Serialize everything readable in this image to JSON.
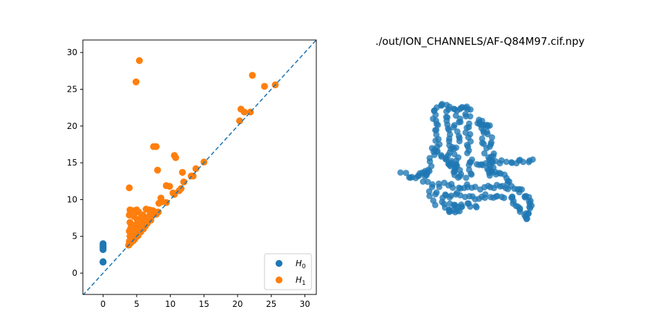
{
  "chart_data": [
    {
      "type": "scatter",
      "title": "",
      "xlabel": "",
      "ylabel": "",
      "xlim": [
        -3,
        31.7
      ],
      "ylim": [
        -2.9,
        31.7
      ],
      "xticks": [
        0,
        5,
        10,
        15,
        20,
        25,
        30
      ],
      "yticks": [
        0,
        5,
        10,
        15,
        20,
        25,
        30
      ],
      "grid": false,
      "diagonal_line": {
        "style": "dashed",
        "color": "#1f77b4"
      },
      "legend": {
        "placement": "lower-right"
      },
      "series": [
        {
          "name": "H0",
          "color": "#1f77b4",
          "points": [
            [
              0,
              1.5
            ],
            [
              0,
              1.55
            ],
            [
              0,
              3.2
            ],
            [
              0,
              3.4
            ],
            [
              0,
              3.55
            ],
            [
              0,
              3.7
            ],
            [
              0,
              3.85
            ],
            [
              0,
              4.0
            ]
          ]
        },
        {
          "name": "H1",
          "color": "#ff7f0e",
          "points": [
            [
              5.4,
              28.9
            ],
            [
              4.9,
              26.0
            ],
            [
              22.2,
              26.9
            ],
            [
              24.0,
              25.4
            ],
            [
              25.6,
              25.6
            ],
            [
              20.5,
              22.3
            ],
            [
              21.0,
              21.9
            ],
            [
              21.9,
              21.9
            ],
            [
              20.3,
              20.7
            ],
            [
              7.5,
              17.2
            ],
            [
              7.9,
              17.2
            ],
            [
              10.6,
              16.0
            ],
            [
              10.8,
              15.7
            ],
            [
              15.0,
              15.1
            ],
            [
              13.8,
              14.2
            ],
            [
              8.1,
              14.0
            ],
            [
              11.8,
              13.7
            ],
            [
              13.1,
              13.2
            ],
            [
              13.4,
              13.2
            ],
            [
              12.0,
              12.4
            ],
            [
              3.9,
              11.6
            ],
            [
              9.4,
              11.9
            ],
            [
              9.9,
              11.8
            ],
            [
              11.6,
              11.5
            ],
            [
              11.3,
              11.2
            ],
            [
              10.6,
              10.7
            ],
            [
              10.4,
              10.9
            ],
            [
              8.6,
              10.2
            ],
            [
              9.4,
              9.6
            ],
            [
              8.8,
              9.7
            ],
            [
              8.3,
              9.5
            ],
            [
              4.0,
              8.6
            ],
            [
              4.4,
              8.5
            ],
            [
              4.1,
              8.2
            ],
            [
              3.9,
              7.9
            ],
            [
              4.3,
              8.0
            ],
            [
              4.6,
              7.7
            ],
            [
              4.8,
              8.4
            ],
            [
              5.0,
              8.6
            ],
            [
              5.3,
              8.3
            ],
            [
              6.4,
              8.7
            ],
            [
              6.9,
              8.6
            ],
            [
              7.4,
              8.5
            ],
            [
              7.8,
              8.3
            ],
            [
              7.0,
              8.1
            ],
            [
              5.9,
              7.9
            ],
            [
              6.2,
              7.6
            ],
            [
              5.6,
              7.5
            ],
            [
              6.6,
              7.3
            ],
            [
              7.2,
              7.7
            ],
            [
              7.9,
              8.0
            ],
            [
              8.2,
              8.3
            ],
            [
              5.1,
              7.2
            ],
            [
              5.4,
              7.0
            ],
            [
              5.8,
              7.1
            ],
            [
              6.1,
              6.9
            ],
            [
              6.6,
              6.8
            ],
            [
              7.1,
              7.2
            ],
            [
              4.0,
              6.9
            ],
            [
              4.2,
              6.6
            ],
            [
              4.5,
              6.5
            ],
            [
              4.9,
              6.4
            ],
            [
              5.3,
              6.6
            ],
            [
              5.7,
              6.3
            ],
            [
              6.3,
              6.4
            ],
            [
              4.1,
              6.1
            ],
            [
              4.4,
              5.9
            ],
            [
              4.8,
              6.0
            ],
            [
              5.1,
              5.8
            ],
            [
              5.5,
              5.9
            ],
            [
              6.0,
              6.0
            ],
            [
              3.9,
              5.7
            ],
            [
              4.1,
              5.4
            ],
            [
              4.3,
              5.2
            ],
            [
              4.7,
              5.4
            ],
            [
              5.0,
              5.3
            ],
            [
              5.4,
              5.5
            ],
            [
              5.6,
              5.6
            ],
            [
              4.0,
              5.0
            ],
            [
              4.2,
              4.9
            ],
            [
              4.5,
              4.8
            ],
            [
              4.9,
              4.9
            ],
            [
              5.2,
              5.1
            ],
            [
              4.1,
              4.6
            ],
            [
              4.4,
              4.5
            ],
            [
              4.7,
              4.6
            ],
            [
              3.9,
              4.3
            ],
            [
              4.2,
              4.2
            ],
            [
              4.5,
              4.4
            ],
            [
              3.8,
              3.8
            ],
            [
              4.0,
              4.0
            ],
            [
              4.3,
              4.3
            ]
          ]
        }
      ]
    },
    {
      "type": "scatter",
      "title": "./out/ION_CHANNELS/AF-Q84M97.cif.npy",
      "xlabel": "",
      "ylabel": "",
      "axes_visible": false,
      "series": [
        {
          "name": "",
          "color": "#1f77b4",
          "point_groups": [
            {
              "path": [
                [
                  632,
                  158
                ],
                [
                  628,
                  170
                ],
                [
                  632,
                  182
                ],
                [
                  630,
                  194
                ],
                [
                  634,
                  206
                ],
                [
                  630,
                  218
                ],
                [
                  624,
                  232
                ],
                [
                  620,
                  246
                ],
                [
                  616,
                  258
                ]
              ],
              "count": 24
            },
            {
              "path": [
                [
                  648,
                  158
                ],
                [
                  646,
                  172
                ],
                [
                  650,
                  186
                ],
                [
                  648,
                  200
                ],
                [
                  652,
                  214
                ],
                [
                  650,
                  226
                ],
                [
                  654,
                  240
                ],
                [
                  656,
                  252
                ]
              ],
              "count": 22
            },
            {
              "path": [
                [
                  662,
                  160
                ],
                [
                  664,
                  174
                ],
                [
                  660,
                  188
                ],
                [
                  664,
                  202
                ],
                [
                  660,
                  216
                ],
                [
                  664,
                  230
                ],
                [
                  660,
                  244
                ],
                [
                  662,
                  256
                ]
              ],
              "count": 22
            },
            {
              "path": [
                [
                  676,
                  158
                ],
                [
                  678,
                  172
                ],
                [
                  674,
                  186
                ],
                [
                  680,
                  200
                ],
                [
                  676,
                  214
                ],
                [
                  680,
                  228
                ],
                [
                  678,
                  242
                ],
                [
                  682,
                  254
                ]
              ],
              "count": 22
            },
            {
              "path": [
                [
                  694,
                  176
                ],
                [
                  698,
                  190
                ],
                [
                  700,
                  204
                ],
                [
                  704,
                  218
                ],
                [
                  706,
                  232
                ],
                [
                  710,
                  246
                ],
                [
                  712,
                  258
                ]
              ],
              "count": 18
            },
            {
              "path": [
                [
                  706,
                  180
                ],
                [
                  708,
                  196
                ],
                [
                  712,
                  212
                ],
                [
                  714,
                  228
                ],
                [
                  716,
                  242
                ]
              ],
              "count": 14
            },
            {
              "path": [
                [
                  632,
                  156
                ],
                [
                  642,
                  154
                ],
                [
                  652,
                  156
                ],
                [
                  662,
                  156
                ],
                [
                  672,
                  156
                ],
                [
                  680,
                  158
                ]
              ],
              "count": 14
            },
            {
              "path": [
                [
                  690,
                  176
                ],
                [
                  698,
                  178
                ],
                [
                  706,
                  180
                ]
              ],
              "count": 8
            },
            {
              "path": [
                [
                  582,
                  252
                ],
                [
                  592,
                  256
                ],
                [
                  600,
                  258
                ],
                [
                  608,
                  254
                ],
                [
                  614,
                  250
                ],
                [
                  620,
                  248
                ]
              ],
              "count": 14
            },
            {
              "path": [
                [
                  616,
                  266
                ],
                [
                  630,
                  270
                ],
                [
                  646,
                  268
                ],
                [
                  662,
                  272
                ],
                [
                  678,
                  270
                ],
                [
                  694,
                  274
                ],
                [
                  710,
                  272
                ],
                [
                  724,
                  270
                ],
                [
                  738,
                  272
                ]
              ],
              "count": 28
            },
            {
              "path": [
                [
                  620,
                  280
                ],
                [
                  636,
                  284
                ],
                [
                  652,
                  286
                ],
                [
                  668,
                  282
                ],
                [
                  684,
                  286
                ],
                [
                  700,
                  284
                ],
                [
                  716,
                  288
                ],
                [
                  732,
                  286
                ]
              ],
              "count": 26
            },
            {
              "path": [
                [
                  630,
                  294
                ],
                [
                  644,
                  298
                ],
                [
                  660,
                  300
                ],
                [
                  676,
                  296
                ],
                [
                  690,
                  298
                ]
              ],
              "count": 16
            },
            {
              "path": [
                [
                  648,
                  302
                ],
                [
                  650,
                  308
                ],
                [
                  660,
                  306
                ],
                [
                  670,
                  300
                ]
              ],
              "count": 10
            },
            {
              "path": [
                [
                  690,
                  236
                ],
                [
                  700,
                  238
                ],
                [
                  714,
                  236
                ],
                [
                  730,
                  234
                ],
                [
                  746,
                  236
                ],
                [
                  758,
                  234
                ],
                [
                  772,
                  234
                ]
              ],
              "count": 20
            },
            {
              "path": [
                [
                  708,
                  248
                ],
                [
                  720,
                  250
                ],
                [
                  732,
                  256
                ],
                [
                  736,
                  266
                ]
              ],
              "count": 12
            },
            {
              "path": [
                [
                  744,
                  272
                ],
                [
                  752,
                  278
                ],
                [
                  760,
                  284
                ],
                [
                  766,
                  290
                ],
                [
                  768,
                  298
                ],
                [
                  764,
                  306
                ],
                [
                  760,
                  314
                ],
                [
                  760,
                  318
                ]
              ],
              "count": 22
            },
            {
              "path": [
                [
                  740,
                  282
                ],
                [
                  744,
                  292
                ],
                [
                  750,
                  300
                ],
                [
                  756,
                  308
                ]
              ],
              "count": 10
            },
            {
              "path": [
                [
                  626,
                  214
                ],
                [
                  636,
                  222
                ],
                [
                  646,
                  230
                ],
                [
                  656,
                  238
                ],
                [
                  664,
                  248
                ],
                [
                  672,
                  256
                ]
              ],
              "count": 16
            }
          ]
        }
      ]
    }
  ]
}
